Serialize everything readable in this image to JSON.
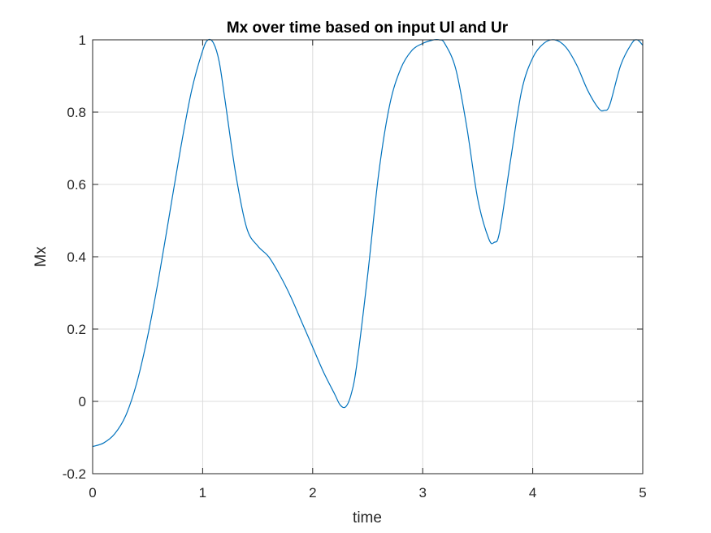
{
  "chart_data": {
    "type": "line",
    "title": "Mx over time based on input Ul and Ur",
    "xlabel": "time",
    "ylabel": "Mx",
    "xlim": [
      0,
      5
    ],
    "ylim": [
      -0.2,
      1
    ],
    "xticks": [
      0,
      1,
      2,
      3,
      4,
      5
    ],
    "xtick_labels": [
      "0",
      "1",
      "2",
      "3",
      "4",
      "5"
    ],
    "yticks": [
      -0.2,
      0,
      0.2,
      0.4,
      0.6,
      0.8,
      1
    ],
    "ytick_labels": [
      "-0.2",
      "0",
      "0.2",
      "0.4",
      "0.6",
      "0.8",
      "1"
    ],
    "grid": true,
    "series": [
      {
        "color": "#0072bd",
        "x": [
          0,
          0.1,
          0.2,
          0.3,
          0.4,
          0.5,
          0.6,
          0.7,
          0.8,
          0.9,
          1.0,
          1.05,
          1.1,
          1.15,
          1.2,
          1.3,
          1.4,
          1.5,
          1.6,
          1.7,
          1.8,
          1.9,
          2.0,
          2.1,
          2.2,
          2.25,
          2.3,
          2.35,
          2.4,
          2.5,
          2.6,
          2.7,
          2.8,
          2.9,
          3.0,
          3.1,
          3.15,
          3.2,
          3.3,
          3.4,
          3.5,
          3.6,
          3.65,
          3.7,
          3.8,
          3.9,
          4.0,
          4.1,
          4.2,
          4.3,
          4.4,
          4.5,
          4.6,
          4.65,
          4.7,
          4.8,
          4.9,
          4.95,
          5.0
        ],
        "y": [
          -0.125,
          -0.115,
          -0.09,
          -0.04,
          0.05,
          0.18,
          0.34,
          0.52,
          0.7,
          0.86,
          0.97,
          1.0,
          0.99,
          0.94,
          0.84,
          0.63,
          0.48,
          0.43,
          0.4,
          0.35,
          0.29,
          0.22,
          0.15,
          0.08,
          0.02,
          -0.01,
          -0.015,
          0.02,
          0.1,
          0.35,
          0.63,
          0.82,
          0.92,
          0.97,
          0.99,
          1.0,
          1.0,
          0.99,
          0.92,
          0.76,
          0.56,
          0.45,
          0.44,
          0.47,
          0.67,
          0.86,
          0.95,
          0.99,
          1.0,
          0.98,
          0.93,
          0.86,
          0.81,
          0.805,
          0.82,
          0.93,
          0.99,
          1.0,
          0.985
        ]
      }
    ]
  }
}
